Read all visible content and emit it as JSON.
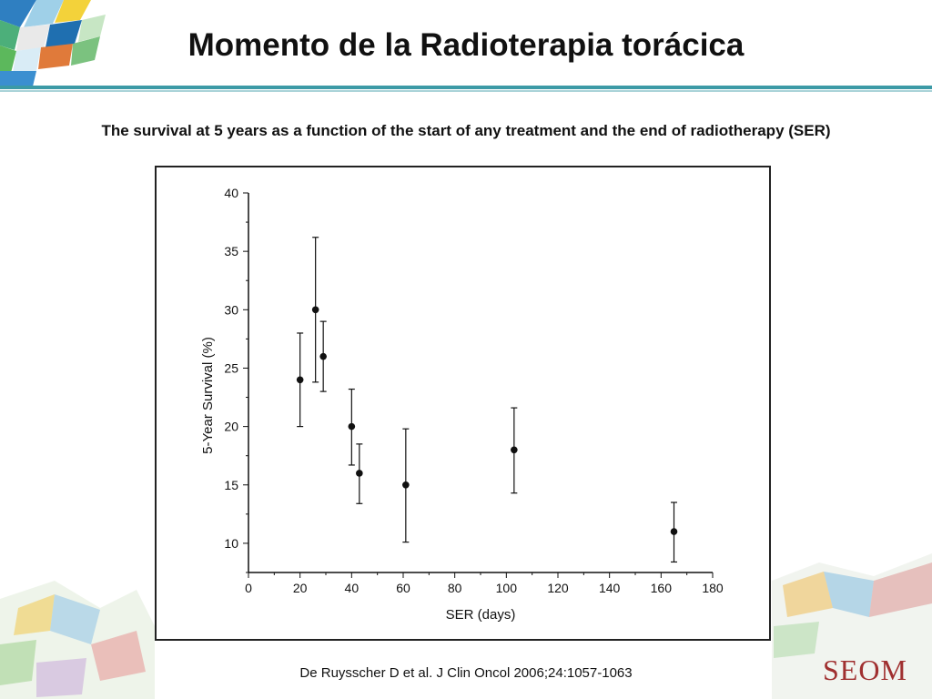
{
  "slide": {
    "title": "Momento de la Radioterapia torácica",
    "subtitle": "The survival at 5 years as a function of the start of any treatment and the end of radiotherapy (SER)",
    "citation": "De Ruysscher D et al. J Clin Oncol 2006;24:1057-1063",
    "logo_text": "SEOM",
    "colors": {
      "title_rule": "#3c9aa6",
      "logo": "#a03030"
    }
  },
  "chart_data": {
    "type": "scatter",
    "title": "",
    "xlabel": "SER (days)",
    "ylabel": "5-Year Survival (%)",
    "xlim": [
      0,
      180
    ],
    "ylim": [
      7.5,
      40
    ],
    "xticks": [
      0,
      20,
      40,
      60,
      80,
      100,
      120,
      140,
      160,
      180
    ],
    "yticks": [
      10,
      15,
      20,
      25,
      30,
      35,
      40
    ],
    "grid": false,
    "legend": "none",
    "points": [
      {
        "x": 20,
        "y": 24,
        "low": 20,
        "high": 28
      },
      {
        "x": 26,
        "y": 30,
        "low": 23.8,
        "high": 36.2
      },
      {
        "x": 29,
        "y": 26,
        "low": 23,
        "high": 29
      },
      {
        "x": 40,
        "y": 20,
        "low": 16.7,
        "high": 23.2
      },
      {
        "x": 43,
        "y": 16,
        "low": 13.4,
        "high": 18.5
      },
      {
        "x": 61,
        "y": 15,
        "low": 10.1,
        "high": 19.8
      },
      {
        "x": 103,
        "y": 18,
        "low": 14.3,
        "high": 21.6
      },
      {
        "x": 165,
        "y": 11,
        "low": 8.4,
        "high": 13.5
      }
    ]
  }
}
